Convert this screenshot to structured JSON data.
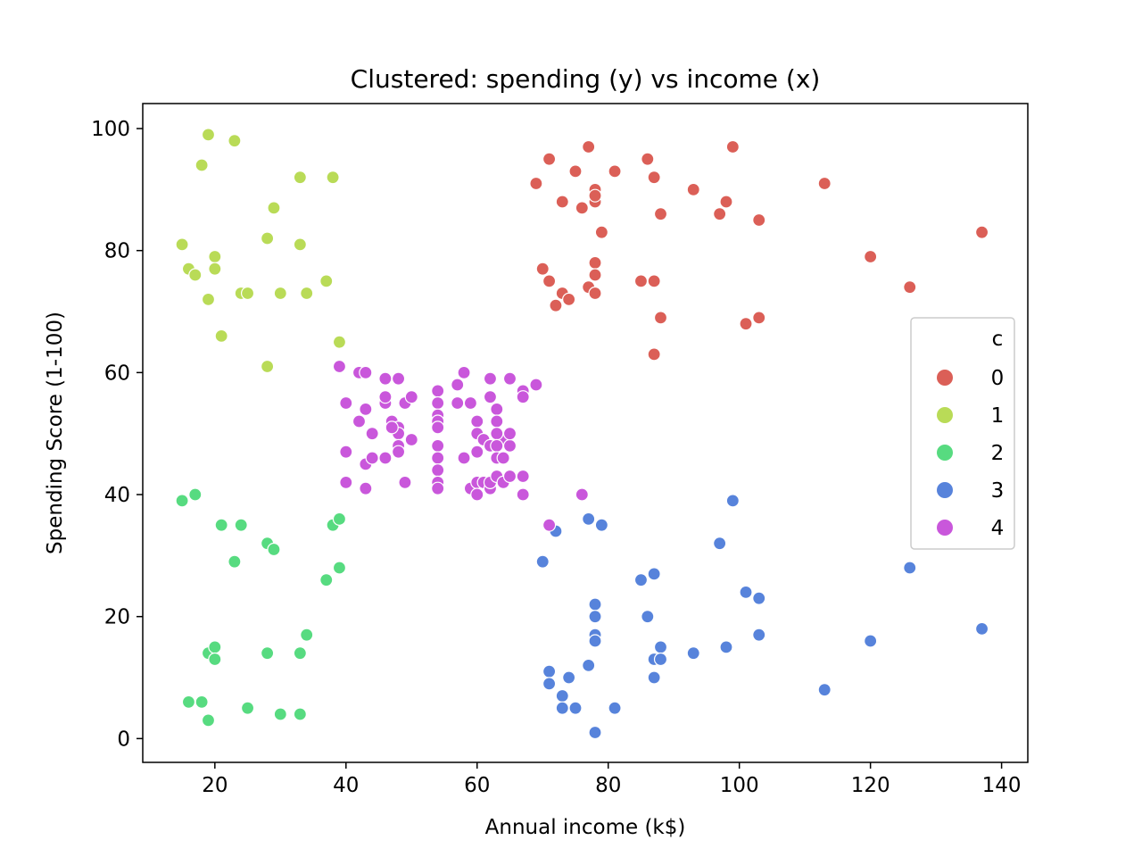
{
  "chart_data": {
    "type": "scatter",
    "title": "Clustered: spending (y) vs income (x)",
    "xlabel": "Annual income (k$)",
    "ylabel": "Spending Score (1-100)",
    "xlim": [
      9,
      144
    ],
    "ylim": [
      -3.9,
      104.1
    ],
    "xticks": [
      20,
      40,
      60,
      80,
      100,
      120,
      140
    ],
    "yticks": [
      0,
      20,
      40,
      60,
      80,
      100
    ],
    "grid": false,
    "legend": {
      "title": "c",
      "placement": "right"
    },
    "series": [
      {
        "name": "0",
        "color": "#db5f57",
        "points": [
          [
            69,
            91
          ],
          [
            71,
            95
          ],
          [
            73,
            88
          ],
          [
            75,
            93
          ],
          [
            76,
            87
          ],
          [
            77,
            97
          ],
          [
            78,
            90
          ],
          [
            78,
            88
          ],
          [
            78,
            89
          ],
          [
            79,
            83
          ],
          [
            81,
            93
          ],
          [
            86,
            95
          ],
          [
            87,
            92
          ],
          [
            88,
            86
          ],
          [
            93,
            90
          ],
          [
            97,
            86
          ],
          [
            98,
            88
          ],
          [
            99,
            97
          ],
          [
            103,
            85
          ],
          [
            113,
            91
          ],
          [
            137,
            83
          ],
          [
            70,
            77
          ],
          [
            71,
            75
          ],
          [
            72,
            71
          ],
          [
            73,
            73
          ],
          [
            74,
            72
          ],
          [
            77,
            74
          ],
          [
            78,
            78
          ],
          [
            78,
            76
          ],
          [
            78,
            73
          ],
          [
            85,
            75
          ],
          [
            87,
            75
          ],
          [
            88,
            69
          ],
          [
            87,
            63
          ],
          [
            101,
            68
          ],
          [
            103,
            69
          ],
          [
            120,
            79
          ],
          [
            126,
            74
          ]
        ]
      },
      {
        "name": "1",
        "color": "#b9db57",
        "points": [
          [
            18,
            94
          ],
          [
            19,
            99
          ],
          [
            23,
            98
          ],
          [
            33,
            92
          ],
          [
            38,
            92
          ],
          [
            15,
            81
          ],
          [
            16,
            77
          ],
          [
            17,
            76
          ],
          [
            19,
            72
          ],
          [
            20,
            79
          ],
          [
            20,
            77
          ],
          [
            21,
            66
          ],
          [
            24,
            73
          ],
          [
            25,
            73
          ],
          [
            28,
            82
          ],
          [
            29,
            87
          ],
          [
            28,
            61
          ],
          [
            30,
            73
          ],
          [
            33,
            81
          ],
          [
            34,
            73
          ],
          [
            37,
            75
          ],
          [
            39,
            65
          ]
        ]
      },
      {
        "name": "2",
        "color": "#57db80",
        "points": [
          [
            15,
            39
          ],
          [
            17,
            40
          ],
          [
            21,
            35
          ],
          [
            24,
            35
          ],
          [
            23,
            29
          ],
          [
            28,
            32
          ],
          [
            29,
            31
          ],
          [
            38,
            35
          ],
          [
            39,
            36
          ],
          [
            37,
            26
          ],
          [
            39,
            28
          ],
          [
            34,
            17
          ],
          [
            19,
            14
          ],
          [
            20,
            15
          ],
          [
            20,
            13
          ],
          [
            28,
            14
          ],
          [
            33,
            14
          ],
          [
            16,
            6
          ],
          [
            18,
            6
          ],
          [
            19,
            3
          ],
          [
            25,
            5
          ],
          [
            30,
            4
          ],
          [
            33,
            4
          ]
        ]
      },
      {
        "name": "3",
        "color": "#5783db",
        "points": [
          [
            72,
            34
          ],
          [
            77,
            36
          ],
          [
            79,
            35
          ],
          [
            70,
            29
          ],
          [
            85,
            26
          ],
          [
            87,
            27
          ],
          [
            97,
            32
          ],
          [
            99,
            39
          ],
          [
            78,
            22
          ],
          [
            78,
            20
          ],
          [
            86,
            20
          ],
          [
            78,
            17
          ],
          [
            78,
            16
          ],
          [
            88,
            15
          ],
          [
            87,
            13
          ],
          [
            88,
            13
          ],
          [
            93,
            14
          ],
          [
            98,
            15
          ],
          [
            101,
            24
          ],
          [
            103,
            23
          ],
          [
            103,
            17
          ],
          [
            71,
            11
          ],
          [
            71,
            9
          ],
          [
            73,
            7
          ],
          [
            73,
            5
          ],
          [
            74,
            10
          ],
          [
            75,
            5
          ],
          [
            77,
            12
          ],
          [
            78,
            1
          ],
          [
            81,
            5
          ],
          [
            87,
            10
          ],
          [
            113,
            8
          ],
          [
            120,
            16
          ],
          [
            126,
            28
          ],
          [
            137,
            18
          ]
        ]
      },
      {
        "name": "4",
        "color": "#c957db",
        "points": [
          [
            39,
            61
          ],
          [
            42,
            60
          ],
          [
            43,
            60
          ],
          [
            46,
            59
          ],
          [
            48,
            59
          ],
          [
            57,
            58
          ],
          [
            58,
            60
          ],
          [
            62,
            59
          ],
          [
            65,
            59
          ],
          [
            67,
            57
          ],
          [
            69,
            58
          ],
          [
            40,
            55
          ],
          [
            42,
            52
          ],
          [
            43,
            54
          ],
          [
            44,
            50
          ],
          [
            46,
            55
          ],
          [
            46,
            56
          ],
          [
            47,
            52
          ],
          [
            48,
            51
          ],
          [
            48,
            50
          ],
          [
            49,
            55
          ],
          [
            50,
            56
          ],
          [
            54,
            57
          ],
          [
            54,
            55
          ],
          [
            54,
            53
          ],
          [
            54,
            52
          ],
          [
            54,
            51
          ],
          [
            57,
            55
          ],
          [
            59,
            55
          ],
          [
            60,
            52
          ],
          [
            62,
            56
          ],
          [
            63,
            54
          ],
          [
            63,
            52
          ],
          [
            64,
            49
          ],
          [
            67,
            56
          ],
          [
            40,
            47
          ],
          [
            40,
            42
          ],
          [
            43,
            45
          ],
          [
            43,
            41
          ],
          [
            44,
            46
          ],
          [
            46,
            46
          ],
          [
            47,
            51
          ],
          [
            48,
            48
          ],
          [
            48,
            47
          ],
          [
            49,
            42
          ],
          [
            50,
            49
          ],
          [
            54,
            48
          ],
          [
            54,
            46
          ],
          [
            54,
            44
          ],
          [
            54,
            42
          ],
          [
            54,
            41
          ],
          [
            58,
            46
          ],
          [
            59,
            41
          ],
          [
            60,
            42
          ],
          [
            60,
            40
          ],
          [
            60,
            50
          ],
          [
            60,
            47
          ],
          [
            61,
            49
          ],
          [
            61,
            42
          ],
          [
            62,
            48
          ],
          [
            62,
            41
          ],
          [
            62,
            42
          ],
          [
            63,
            50
          ],
          [
            63,
            48
          ],
          [
            63,
            46
          ],
          [
            63,
            43
          ],
          [
            64,
            42
          ],
          [
            64,
            46
          ],
          [
            65,
            48
          ],
          [
            65,
            50
          ],
          [
            65,
            43
          ],
          [
            67,
            43
          ],
          [
            67,
            40
          ],
          [
            71,
            35
          ],
          [
            76,
            40
          ]
        ]
      }
    ]
  }
}
